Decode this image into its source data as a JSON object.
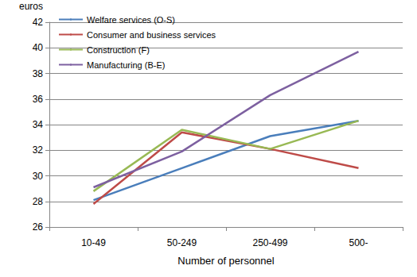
{
  "chart_data": {
    "type": "line",
    "xlabel": "Number of personnel",
    "ylabel": "euros",
    "categories": [
      "10-49",
      "50-249",
      "250-499",
      "500-"
    ],
    "series": [
      {
        "name": "Welfare services (O-S)",
        "color": "#4a7ebb",
        "values": [
          28.1,
          30.6,
          33.1,
          34.3
        ]
      },
      {
        "name": "Consumer and business services",
        "color": "#be4b48",
        "values": [
          27.8,
          33.4,
          32.1,
          30.6
        ]
      },
      {
        "name": "Construction (F)",
        "color": "#98b954",
        "values": [
          28.8,
          33.6,
          32.1,
          34.3
        ]
      },
      {
        "name": "Manufacturing (B-E)",
        "color": "#7d60a0",
        "values": [
          29.1,
          31.9,
          36.3,
          39.7
        ]
      }
    ],
    "ylim": [
      26,
      42
    ],
    "yticks": [
      26,
      28,
      30,
      32,
      34,
      36,
      38,
      40,
      42
    ],
    "grid": true,
    "legend": "upper left"
  }
}
